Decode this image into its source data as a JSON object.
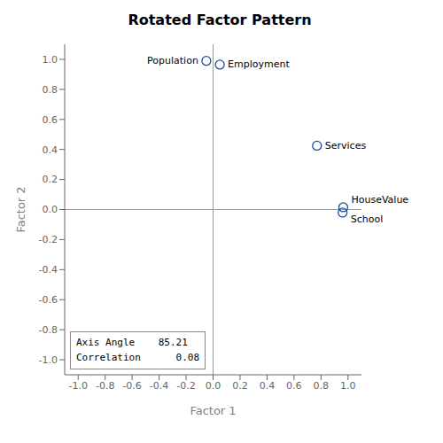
{
  "chart_data": {
    "type": "scatter",
    "title": "Rotated Factor Pattern",
    "x_label": "Factor 1",
    "y_label": "Factor 2",
    "x": [
      -0.05,
      0.05,
      0.77,
      0.965,
      0.96
    ],
    "values": [
      0.99,
      0.965,
      0.425,
      0.015,
      -0.02
    ],
    "labels": [
      "Population",
      "Employment",
      "Services",
      "HouseValue",
      "School"
    ],
    "color": "#1a4f9c",
    "marker": "open_circle",
    "xlim": [
      -1.1,
      1.1
    ],
    "ylim": [
      -1.1,
      1.1
    ],
    "xticks": [
      {
        "value": -1,
        "label": "-1.0"
      },
      -0.8,
      -0.6,
      -0.4,
      -0.2,
      {
        "value": 0,
        "label": "0.0"
      },
      0.2,
      0.4,
      0.6,
      0.8,
      {
        "value": 1,
        "label": "1.0"
      }
    ],
    "yticks": [
      {
        "value": -1,
        "label": "-1.0"
      },
      -0.8,
      -0.6,
      -0.4,
      -0.2,
      {
        "value": 0,
        "label": "0.0"
      },
      0.2,
      0.4,
      0.6,
      0.8,
      {
        "value": 1,
        "label": "1.0"
      }
    ],
    "ref_lines": {
      "x": [
        0
      ],
      "y": [
        0
      ]
    },
    "annotations": [
      "Axis Angle    85.21\nCorrelation      0.08"
    ],
    "grid": false
  }
}
